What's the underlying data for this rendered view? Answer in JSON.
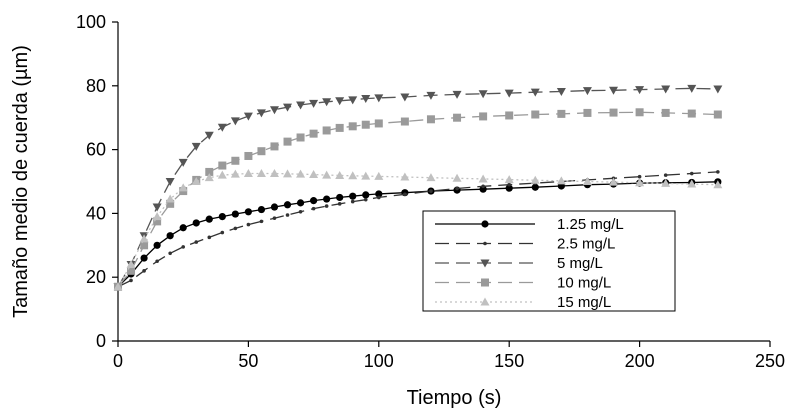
{
  "chart_data": {
    "type": "line",
    "xlabel": "Tiempo (s)",
    "ylabel": "Tamaño medio de cuerda (µm)",
    "xlim": [
      0,
      250
    ],
    "ylim": [
      0,
      100
    ],
    "xticks": [
      0,
      50,
      100,
      150,
      200,
      250
    ],
    "yticks": [
      0,
      20,
      40,
      60,
      80,
      100
    ],
    "grid": false,
    "legend_position": "bottom-right",
    "series": [
      {
        "name": "1.25 mg/L",
        "color": "#000000",
        "marker": "circle",
        "dash": "solid",
        "x": [
          0,
          5,
          10,
          15,
          20,
          25,
          30,
          35,
          40,
          45,
          50,
          55,
          60,
          65,
          70,
          75,
          80,
          85,
          90,
          95,
          100,
          110,
          120,
          130,
          140,
          150,
          160,
          170,
          180,
          190,
          200,
          210,
          220,
          230
        ],
        "y": [
          17,
          21,
          26,
          30,
          33,
          35.5,
          37,
          38.2,
          39,
          39.8,
          40.5,
          41.2,
          42,
          42.7,
          43.3,
          44,
          44.5,
          45,
          45.4,
          45.8,
          46.1,
          46.5,
          47,
          47.3,
          47.6,
          47.9,
          48.2,
          48.6,
          49,
          49.2,
          49.5,
          49.6,
          49.7,
          49.9
        ]
      },
      {
        "name": "2.5 mg/L",
        "color": "#333333",
        "marker": "small-dot",
        "dash": "long-dash",
        "x": [
          0,
          5,
          10,
          15,
          20,
          25,
          30,
          35,
          40,
          45,
          50,
          55,
          60,
          65,
          70,
          75,
          80,
          85,
          90,
          95,
          100,
          110,
          120,
          130,
          140,
          150,
          160,
          170,
          180,
          190,
          200,
          210,
          220,
          230
        ],
        "y": [
          17,
          19,
          22,
          25,
          27.5,
          29.5,
          31,
          32.5,
          34,
          35.3,
          36.5,
          37.5,
          38.5,
          39.5,
          40.5,
          41.5,
          42.3,
          43,
          43.7,
          44.3,
          45,
          46,
          47,
          47.8,
          48.5,
          49,
          49.5,
          50,
          50.5,
          51,
          51.5,
          52,
          52.5,
          53
        ]
      },
      {
        "name": "5 mg/L",
        "color": "#555555",
        "marker": "triangle-down",
        "dash": "long-dash",
        "x": [
          0,
          5,
          10,
          15,
          20,
          25,
          30,
          35,
          40,
          45,
          50,
          55,
          60,
          65,
          70,
          75,
          80,
          85,
          90,
          95,
          100,
          110,
          120,
          130,
          140,
          150,
          160,
          170,
          180,
          190,
          200,
          210,
          220,
          230
        ],
        "y": [
          17,
          24,
          33,
          42,
          50,
          56,
          61,
          64.5,
          67,
          69,
          70.5,
          71.5,
          72.5,
          73.3,
          74,
          74.5,
          75,
          75.3,
          75.6,
          76,
          76.2,
          76.5,
          77,
          77.3,
          77.5,
          77.7,
          78,
          78.2,
          78.5,
          78.6,
          78.8,
          79,
          79.2,
          79
        ]
      },
      {
        "name": "10 mg/L",
        "color": "#9a9a9a",
        "marker": "square",
        "dash": "long-dash",
        "x": [
          0,
          5,
          10,
          15,
          20,
          25,
          30,
          35,
          40,
          45,
          50,
          55,
          60,
          65,
          70,
          75,
          80,
          85,
          90,
          95,
          100,
          110,
          120,
          130,
          140,
          150,
          160,
          170,
          180,
          190,
          200,
          210,
          220,
          230
        ],
        "y": [
          17,
          22,
          30,
          37.5,
          43,
          47,
          50.5,
          53,
          55,
          56.5,
          58,
          59.5,
          61,
          62.5,
          63.8,
          65,
          66,
          66.8,
          67.3,
          67.8,
          68.2,
          68.8,
          69.5,
          70,
          70.4,
          70.7,
          71,
          71.2,
          71.5,
          71.6,
          71.7,
          71.5,
          71.3,
          71
        ]
      },
      {
        "name": "15 mg/L",
        "color": "#c0c0c0",
        "marker": "triangle-up",
        "dash": "dotted",
        "x": [
          0,
          5,
          10,
          15,
          20,
          25,
          30,
          35,
          40,
          45,
          50,
          55,
          60,
          65,
          70,
          75,
          80,
          85,
          90,
          95,
          100,
          110,
          120,
          130,
          140,
          150,
          160,
          170,
          180,
          190,
          200,
          210,
          220,
          230
        ],
        "y": [
          17,
          24,
          32,
          39,
          44.5,
          48,
          50,
          51.2,
          52,
          52.3,
          52.5,
          52.5,
          52.5,
          52.4,
          52.3,
          52.2,
          52,
          51.9,
          51.8,
          51.7,
          51.6,
          51.4,
          51.2,
          51,
          50.8,
          50.6,
          50.4,
          50.2,
          50,
          49.8,
          49.6,
          49.4,
          49.2,
          49
        ]
      }
    ]
  }
}
